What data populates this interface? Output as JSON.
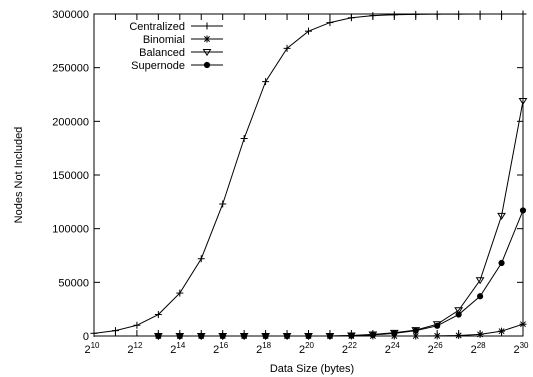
{
  "chart_data": {
    "type": "line",
    "xlabel": "Data Size (bytes)",
    "ylabel": "Nodes Not Included",
    "x_scale": "log2",
    "x_tick_base": "2",
    "x_tick_exponents": [
      "10",
      "12",
      "14",
      "16",
      "18",
      "20",
      "22",
      "24",
      "26",
      "28",
      "30"
    ],
    "xlim_exponent": [
      10,
      30
    ],
    "ylim": [
      0,
      300000
    ],
    "y_ticks": [
      0,
      50000,
      100000,
      150000,
      200000,
      250000,
      300000
    ],
    "y_tick_labels": [
      "0",
      "50000",
      "100000",
      "150000",
      "200000",
      "250000",
      "300000"
    ],
    "legend_position": "top-left",
    "grid": false,
    "series": [
      {
        "name": "Centralized",
        "marker": "plus",
        "x_exponent": [
          10,
          11,
          12,
          13,
          14,
          15,
          16,
          17,
          18,
          19,
          20,
          21,
          22,
          23,
          24,
          25,
          26,
          27,
          28,
          29,
          30
        ],
        "values": [
          2500,
          5000,
          10000,
          20000,
          40000,
          72000,
          123000,
          184000,
          237000,
          268000,
          284000,
          292000,
          296500,
          298500,
          299300,
          299700,
          299850,
          299900,
          299950,
          299980,
          300000
        ]
      },
      {
        "name": "Binomial",
        "marker": "asterisk",
        "x_exponent": [
          13,
          14,
          15,
          16,
          17,
          18,
          19,
          20,
          21,
          22,
          23,
          24,
          25,
          26,
          27,
          28,
          29,
          30
        ],
        "values": [
          0,
          0,
          0,
          0,
          0,
          0,
          0,
          0,
          0,
          0,
          0,
          0,
          0,
          100,
          500,
          1500,
          4500,
          11000
        ]
      },
      {
        "name": "Balanced",
        "marker": "triangle-down",
        "x_exponent": [
          13,
          14,
          15,
          16,
          17,
          18,
          19,
          20,
          21,
          22,
          23,
          24,
          25,
          26,
          27,
          28,
          29,
          30
        ],
        "values": [
          0,
          0,
          0,
          0,
          0,
          0,
          0,
          0,
          0,
          500,
          1500,
          3000,
          5500,
          11000,
          24000,
          52000,
          112000,
          219000
        ]
      },
      {
        "name": "Supernode",
        "marker": "circle-filled",
        "x_exponent": [
          13,
          14,
          15,
          16,
          17,
          18,
          19,
          20,
          21,
          22,
          23,
          24,
          25,
          26,
          27,
          28,
          29,
          30
        ],
        "values": [
          0,
          0,
          0,
          0,
          0,
          0,
          0,
          0,
          0,
          300,
          1000,
          2500,
          5000,
          9500,
          20000,
          37000,
          68000,
          117000
        ]
      }
    ]
  }
}
